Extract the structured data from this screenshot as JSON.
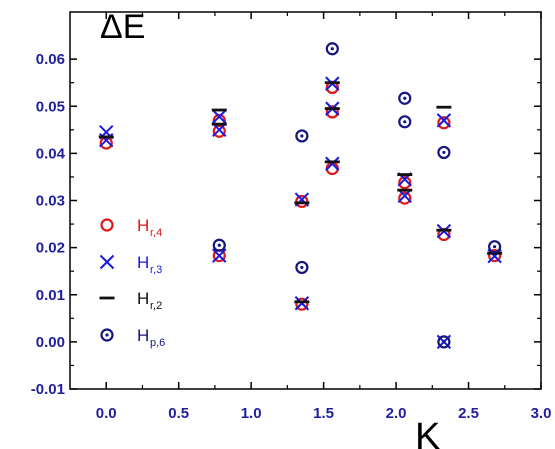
{
  "chart_data": {
    "type": "scatter",
    "title": "",
    "ylabel": "ΔE",
    "xlabel": "K",
    "xlim": [
      -0.25,
      3.0
    ],
    "ylim": [
      -0.01,
      0.07
    ],
    "x_ticks": [
      0.0,
      0.5,
      1.0,
      1.5,
      2.0,
      2.5,
      3.0
    ],
    "x_tick_labels": [
      "0.0",
      "0.5",
      "1.0",
      "1.5",
      "2.0",
      "2.5",
      "3.0"
    ],
    "y_ticks": [
      -0.01,
      0.0,
      0.01,
      0.02,
      0.03,
      0.04,
      0.05,
      0.06
    ],
    "y_tick_labels": [
      "-0.01",
      "0.00",
      "0.01",
      "0.02",
      "0.03",
      "0.04",
      "0.05",
      "0.06"
    ],
    "grid": false,
    "legend_position": "left",
    "series": [
      {
        "name": "H",
        "subscript": "r,4",
        "marker": "circle",
        "color": "#e01818",
        "points": [
          [
            0.0,
            0.0422
          ],
          [
            0.78,
            0.0447
          ],
          [
            0.78,
            0.0183
          ],
          [
            0.78,
            0.047
          ],
          [
            1.35,
            0.0298
          ],
          [
            1.35,
            0.008
          ],
          [
            1.56,
            0.054
          ],
          [
            1.56,
            0.0488
          ],
          [
            1.56,
            0.0368
          ],
          [
            2.06,
            0.0338
          ],
          [
            2.06,
            0.0305
          ],
          [
            2.33,
            0.0465
          ],
          [
            2.33,
            0.0228
          ],
          [
            2.68,
            0.0183
          ]
        ]
      },
      {
        "name": "H",
        "subscript": "r,3",
        "marker": "x",
        "color": "#1a1ae0",
        "points": [
          [
            0.0,
            0.0445
          ],
          [
            0.0,
            0.0428
          ],
          [
            0.78,
            0.0478
          ],
          [
            0.78,
            0.045
          ],
          [
            0.78,
            0.0183
          ],
          [
            1.35,
            0.0302
          ],
          [
            1.35,
            0.0082
          ],
          [
            1.56,
            0.0548
          ],
          [
            1.56,
            0.0495
          ],
          [
            1.56,
            0.0378
          ],
          [
            2.06,
            0.0345
          ],
          [
            2.06,
            0.031
          ],
          [
            2.33,
            0.047
          ],
          [
            2.33,
            0.0235
          ],
          [
            2.33,
            0.0
          ],
          [
            2.68,
            0.0182
          ]
        ]
      },
      {
        "name": "H",
        "subscript": "r,2",
        "marker": "dash",
        "color": "#111111",
        "points": [
          [
            0.0,
            0.0435
          ],
          [
            0.78,
            0.0492
          ],
          [
            0.78,
            0.0462
          ],
          [
            1.35,
            0.0295
          ],
          [
            1.35,
            0.0085
          ],
          [
            1.56,
            0.055
          ],
          [
            1.56,
            0.0495
          ],
          [
            1.56,
            0.0382
          ],
          [
            2.06,
            0.0355
          ],
          [
            2.06,
            0.0322
          ],
          [
            2.33,
            0.0498
          ],
          [
            2.33,
            0.0237
          ],
          [
            2.68,
            0.0188
          ]
        ]
      },
      {
        "name": "H",
        "subscript": "p,6",
        "marker": "dotcircle",
        "color": "#151580",
        "points": [
          [
            0.78,
            0.0205
          ],
          [
            1.35,
            0.0437
          ],
          [
            1.35,
            0.0158
          ],
          [
            1.56,
            0.0622
          ],
          [
            2.06,
            0.0517
          ],
          [
            2.06,
            0.0467
          ],
          [
            2.33,
            0.0402
          ],
          [
            2.33,
            0.0
          ],
          [
            2.68,
            0.0202
          ]
        ]
      }
    ]
  }
}
